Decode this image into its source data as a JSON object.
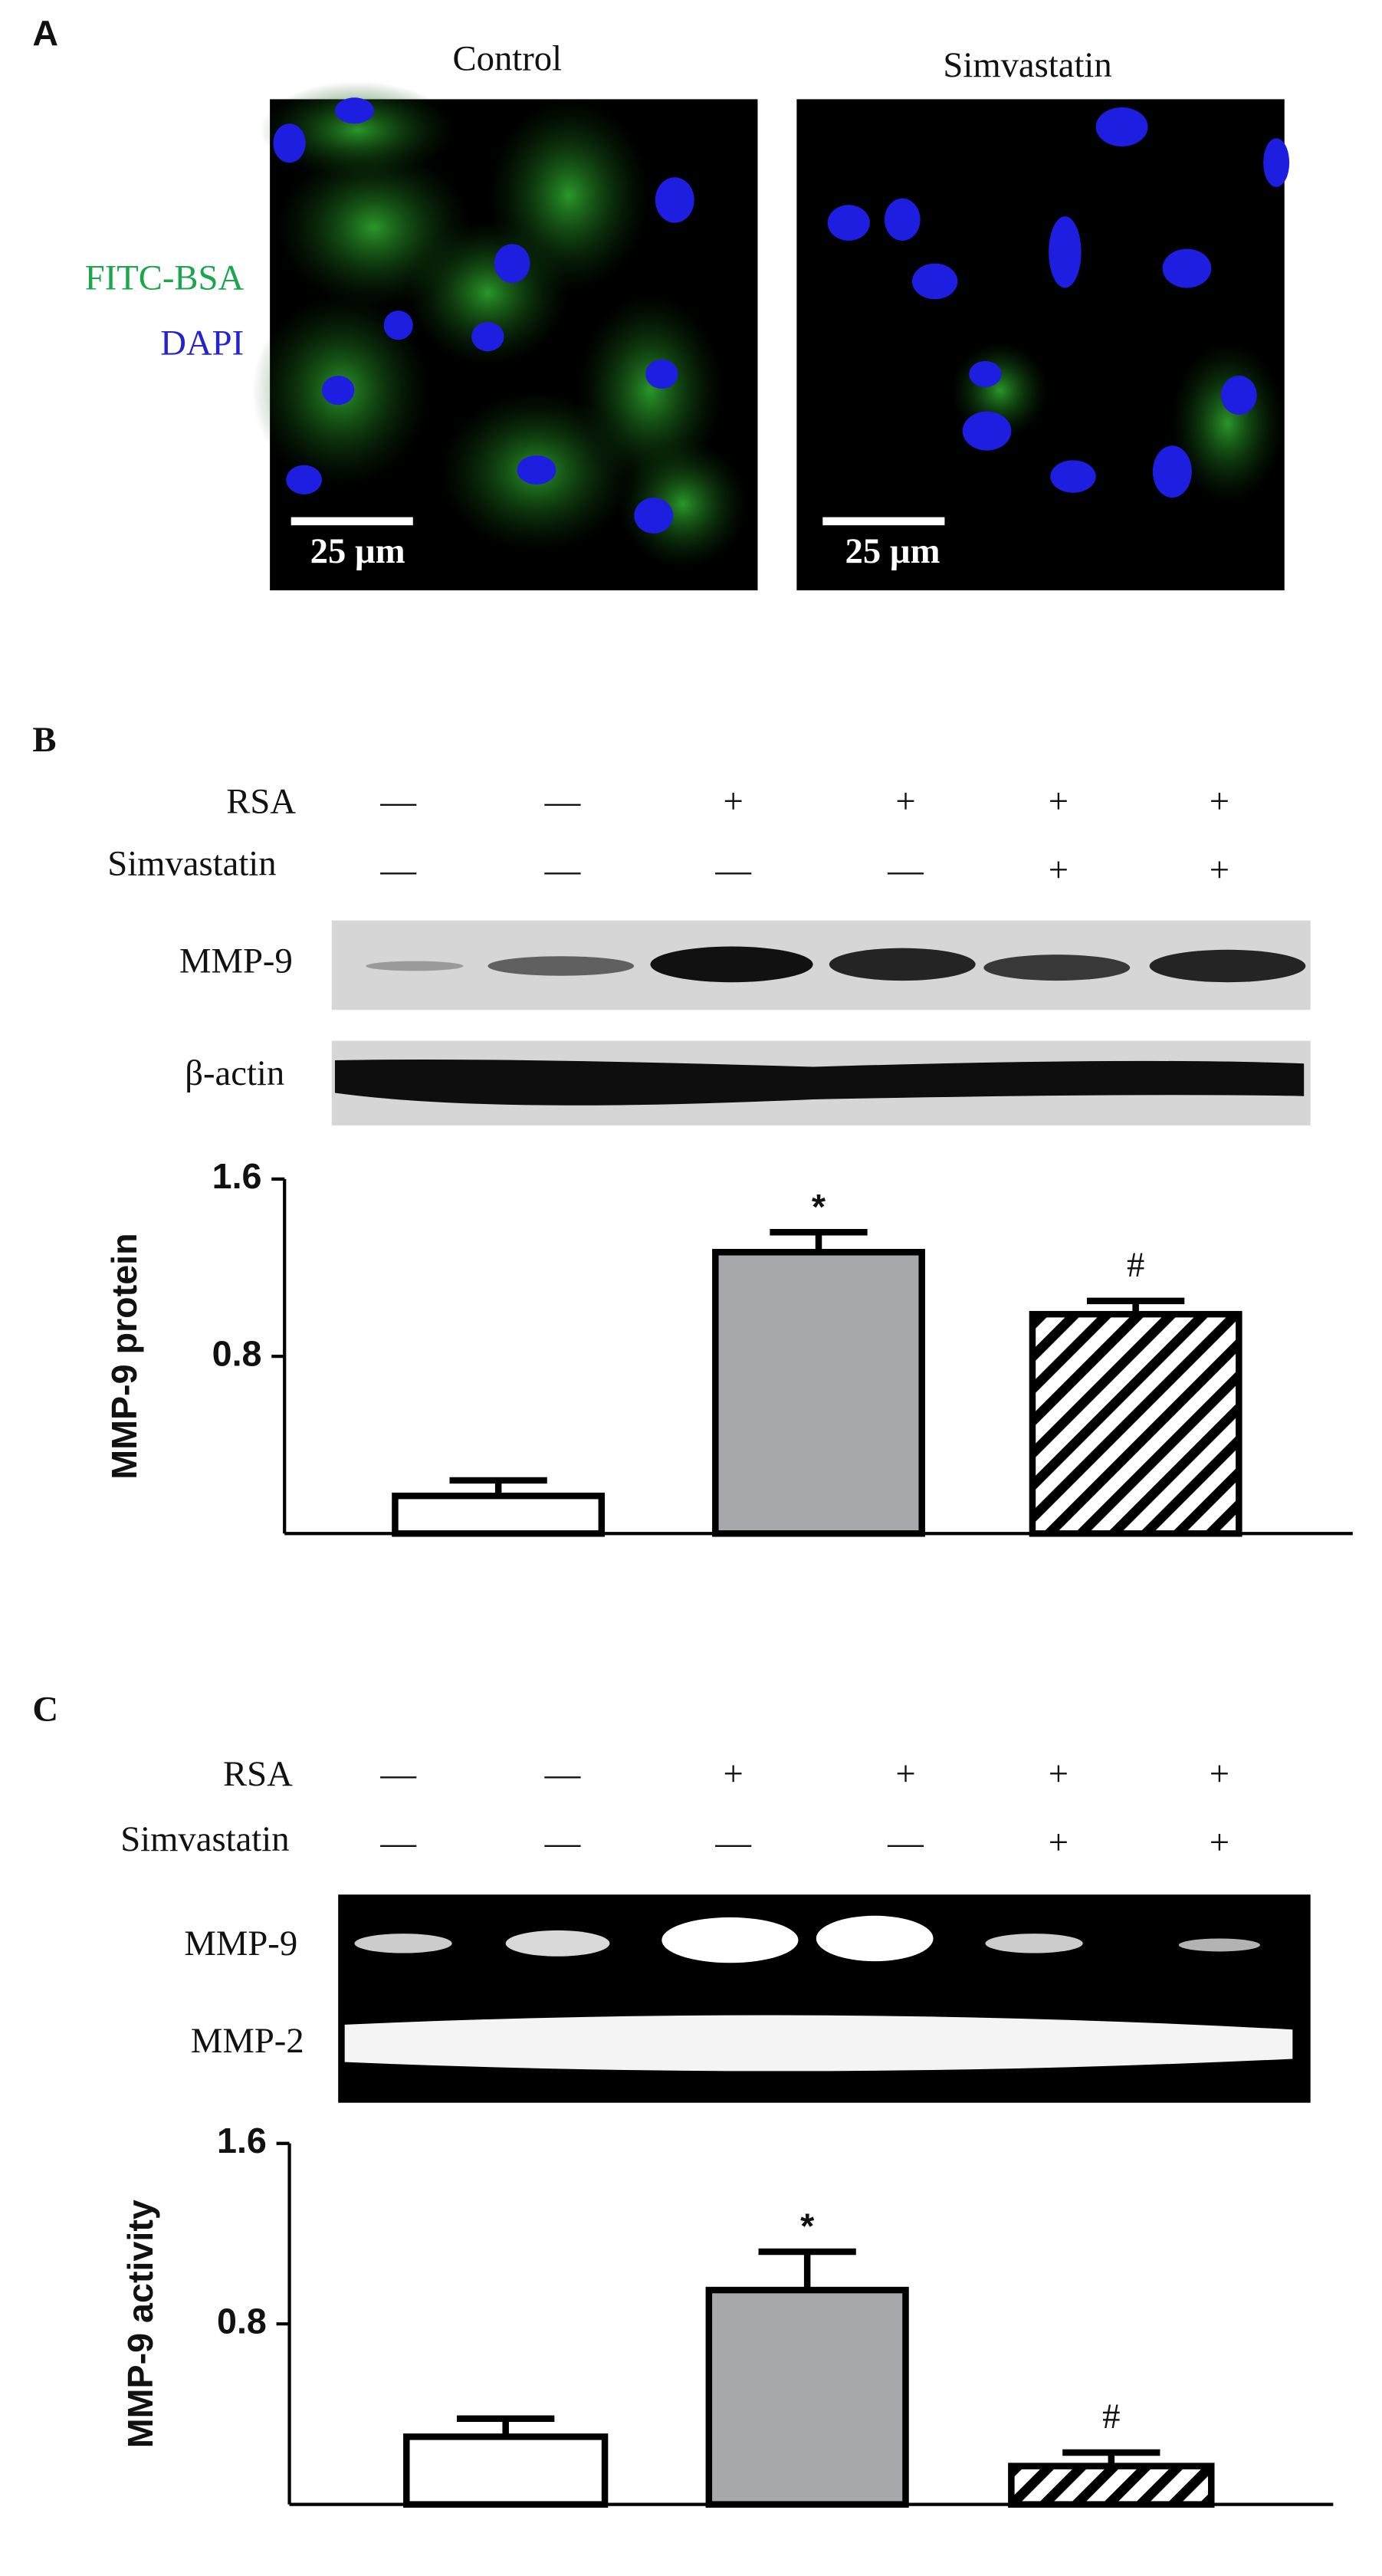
{
  "panel_a": {
    "label": "A",
    "conditions": [
      "Control",
      "Simvastatin"
    ],
    "channels": [
      "FITC-BSA",
      "DAPI"
    ],
    "scale_bars": [
      "25 µm",
      "25 µm"
    ]
  },
  "panel_b": {
    "label": "B",
    "treatments": [
      {
        "name": "RSA",
        "signs": [
          "—",
          "—",
          "+",
          "+",
          "+",
          "+"
        ]
      },
      {
        "name": "Simvastatin",
        "signs": [
          "—",
          "—",
          "—",
          "—",
          "+",
          "+"
        ]
      }
    ],
    "bands": [
      "MMP-9",
      "β-actin"
    ]
  },
  "panel_c": {
    "label": "C",
    "treatments": [
      {
        "name": "RSA",
        "signs": [
          "—",
          "—",
          "+",
          "+",
          "+",
          "+"
        ]
      },
      {
        "name": "Simvastatin",
        "signs": [
          "—",
          "—",
          "—",
          "—",
          "+",
          "+"
        ]
      }
    ],
    "bands": [
      "MMP-9",
      "MMP-2"
    ]
  },
  "chart_data": [
    {
      "type": "bar",
      "ylabel": "MMP-9 protein",
      "categories": [
        null,
        null,
        null
      ],
      "values": [
        0.17,
        1.27,
        0.99
      ],
      "errors": [
        0.07,
        0.09,
        0.06
      ],
      "annotations": [
        null,
        "*",
        "#"
      ],
      "colors": [
        "#ffffff",
        "#a7a8ab",
        "#ffffff"
      ],
      "hatch": [
        false,
        false,
        true
      ],
      "ylim": [
        0,
        1.6
      ],
      "yticks": [
        0.8,
        1.6
      ]
    },
    {
      "type": "bar",
      "ylabel": "MMP-9 activity",
      "categories": [
        null,
        null,
        null
      ],
      "values": [
        0.3,
        0.95,
        0.17
      ],
      "errors": [
        0.08,
        0.17,
        0.06
      ],
      "annotations": [
        null,
        "*",
        "#"
      ],
      "colors": [
        "#ffffff",
        "#a7a8ab",
        "#ffffff"
      ],
      "hatch": [
        false,
        false,
        true
      ],
      "ylim": [
        0,
        1.6
      ],
      "yticks": [
        0.8,
        1.6
      ]
    }
  ]
}
